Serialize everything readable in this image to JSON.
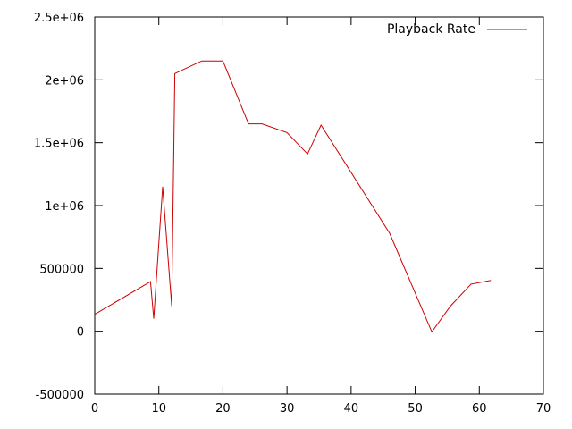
{
  "chart_data": {
    "type": "line",
    "title": "",
    "xlabel": "",
    "ylabel": "",
    "xlim": [
      0,
      70
    ],
    "ylim": [
      -500000,
      2500000
    ],
    "x_ticks": [
      0,
      10,
      20,
      30,
      40,
      50,
      60,
      70
    ],
    "x_tick_labels": [
      "0",
      "10",
      "20",
      "30",
      "40",
      "50",
      "60",
      "70"
    ],
    "y_ticks": [
      -500000,
      0,
      500000,
      1000000,
      1500000,
      2000000,
      2500000
    ],
    "y_tick_labels": [
      "-500000",
      "0",
      "500000",
      "1e+06",
      "1.5e+06",
      "2e+06",
      "2.5e+06"
    ],
    "grid": false,
    "legend_position": "top-right",
    "series": [
      {
        "name": "Playback Rate",
        "color": "#cc0000",
        "points": [
          [
            0,
            135000
          ],
          [
            8.7,
            395000
          ],
          [
            9.2,
            100000
          ],
          [
            10.6,
            1150000
          ],
          [
            12.0,
            200000
          ],
          [
            12.5,
            2050000
          ],
          [
            16.7,
            2150000
          ],
          [
            20.0,
            2150000
          ],
          [
            24.0,
            1650000
          ],
          [
            26.1,
            1650000
          ],
          [
            30.0,
            1580000
          ],
          [
            33.2,
            1410000
          ],
          [
            35.3,
            1640000
          ],
          [
            46.0,
            780000
          ],
          [
            52.6,
            -5000
          ],
          [
            55.5,
            200000
          ],
          [
            58.7,
            375000
          ],
          [
            61.8,
            405000
          ]
        ]
      }
    ]
  }
}
